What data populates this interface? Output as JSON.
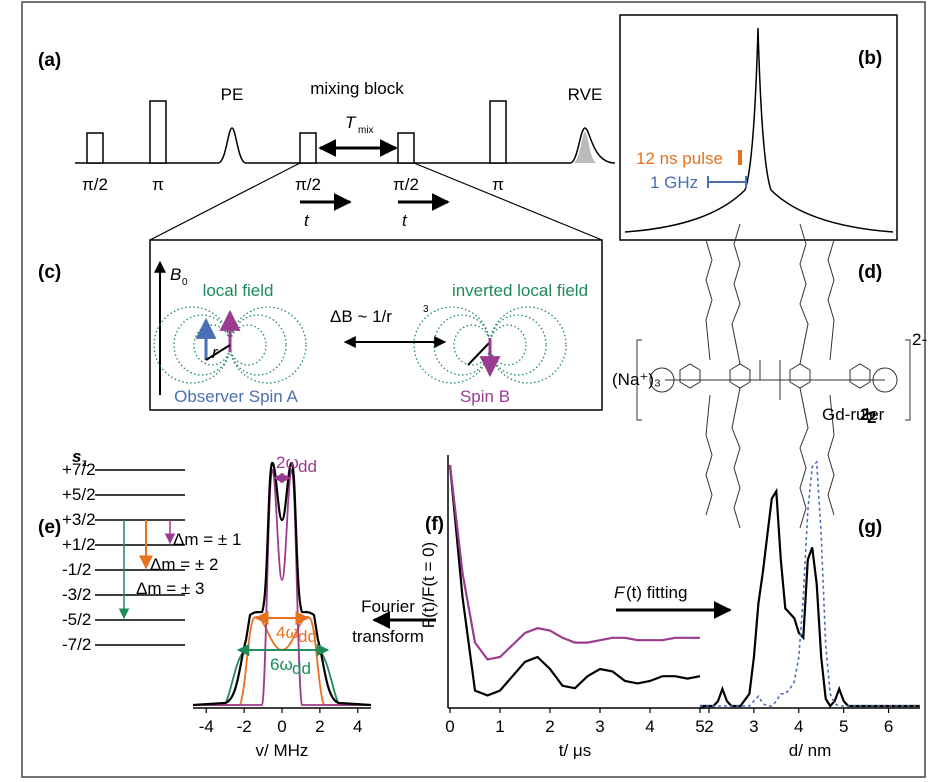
{
  "panel_labels": [
    "(a)",
    "(b)",
    "(c)",
    "(d)",
    "(e)",
    "(f)",
    "(g)"
  ],
  "pulse_sequence": {
    "pulse_labels": [
      "π/2",
      "π",
      "π/2",
      "π/2",
      "π"
    ],
    "echo_labels": [
      "PE",
      "RVE"
    ],
    "mixing_block": "mixing block",
    "t_mix": {
      "symbol": "T",
      "subscript": "mix"
    },
    "t_labels": [
      "t",
      "t"
    ]
  },
  "spectrum": {
    "pulse": "12 ns pulse",
    "bandwidth": "1 GHz"
  },
  "dipolar": {
    "field": {
      "symbol": "B",
      "subscript": "0"
    },
    "local_field": "local field",
    "inverted_field": "inverted local field",
    "relation": "ΔB ~ 1/r",
    "exponent": "3",
    "distance": "r",
    "spin_a": "Observer Spin A",
    "spin_b": "Spin B"
  },
  "molecule": {
    "counterion": "(Na⁺)₃",
    "charge": "2-",
    "name": "Gd-ruler",
    "number": "2",
    "number_sub": "2"
  },
  "levels": {
    "symbol": "s",
    "symbol_sub": "z",
    "labels": [
      "+7/2",
      "+5/2",
      "+3/2",
      "+1/2",
      "-1/2",
      "-3/2",
      "-5/2",
      "-7/2"
    ],
    "transitions": [
      "Δm = ± 1",
      "Δm = ± 2",
      "Δm = ± 3"
    ]
  },
  "fourier": [
    "Fourier",
    "transform"
  ],
  "fitting": {
    "symbol": "F",
    "text": "(t) fitting"
  },
  "chart_data": [
    {
      "type": "spectrum",
      "x_label": "v/ MHz",
      "xlim": [
        -4.7,
        4.7
      ],
      "xticks": [
        -4,
        -2,
        0,
        2,
        4
      ],
      "annotations": [
        {
          "text": "2ω",
          "sub": "dd",
          "color": "#9b3b8f"
        },
        {
          "text": "4ω",
          "sub": "dd",
          "color": "#e8711f"
        },
        {
          "text": "6ω",
          "sub": "dd",
          "color": "#1e8a5a"
        }
      ]
    },
    {
      "type": "line",
      "x_label": "t/ μs",
      "y_label": "F(t)/F(t = 0)",
      "xlim": [
        0,
        5
      ],
      "ylim": [
        0,
        1
      ],
      "xticks": [
        0,
        1,
        2,
        3,
        4,
        5
      ],
      "x": [
        0,
        0.25,
        0.5,
        0.75,
        1,
        1.25,
        1.5,
        1.75,
        2,
        2.25,
        2.5,
        2.75,
        3,
        3.25,
        3.5,
        3.75,
        4,
        4.25,
        4.5,
        4.75,
        5
      ],
      "series": [
        {
          "color": "#000000",
          "values": [
            1.0,
            0.45,
            0.06,
            0.04,
            0.06,
            0.12,
            0.18,
            0.2,
            0.15,
            0.08,
            0.07,
            0.12,
            0.15,
            0.14,
            0.1,
            0.09,
            0.1,
            0.12,
            0.12,
            0.11,
            0.12
          ]
        },
        {
          "color": "#9b3b8f",
          "values": [
            1.0,
            0.55,
            0.26,
            0.19,
            0.2,
            0.25,
            0.3,
            0.32,
            0.31,
            0.28,
            0.26,
            0.26,
            0.27,
            0.28,
            0.28,
            0.27,
            0.27,
            0.27,
            0.28,
            0.28,
            0.28
          ]
        }
      ]
    },
    {
      "type": "line",
      "x_label": "d/ nm",
      "xlim": [
        1.8,
        6.7
      ],
      "ylim": [
        0,
        1
      ],
      "xticks": [
        2,
        3,
        4,
        5,
        6
      ],
      "x": [
        1.8,
        2.1,
        2.2,
        2.3,
        2.4,
        2.5,
        2.7,
        2.9,
        3.0,
        3.1,
        3.2,
        3.3,
        3.4,
        3.5,
        3.6,
        3.7,
        3.8,
        3.9,
        4.0,
        4.1,
        4.2,
        4.3,
        4.4,
        4.5,
        4.6,
        4.7,
        4.8,
        4.9,
        5.0,
        5.1,
        5.3,
        6.7
      ],
      "series": [
        {
          "color": "#000000",
          "dashed": false,
          "values": [
            0,
            0,
            0.02,
            0.07,
            0.02,
            0,
            0,
            0.05,
            0.2,
            0.42,
            0.55,
            0.7,
            0.85,
            0.88,
            0.6,
            0.4,
            0.38,
            0.36,
            0.3,
            0.28,
            0.6,
            0.65,
            0.5,
            0.2,
            0.03,
            0,
            0.02,
            0.07,
            0.02,
            0,
            0,
            0
          ]
        },
        {
          "color": "#4a6fb5",
          "dashed": true,
          "values": [
            0,
            0,
            0,
            0,
            0,
            0,
            0,
            0,
            0.02,
            0.04,
            0.01,
            0,
            0,
            0.02,
            0.05,
            0.05,
            0.07,
            0.1,
            0.2,
            0.45,
            0.8,
            0.98,
            1.0,
            0.7,
            0.25,
            0.05,
            0.01,
            0,
            0,
            0,
            0,
            0
          ]
        }
      ]
    }
  ]
}
